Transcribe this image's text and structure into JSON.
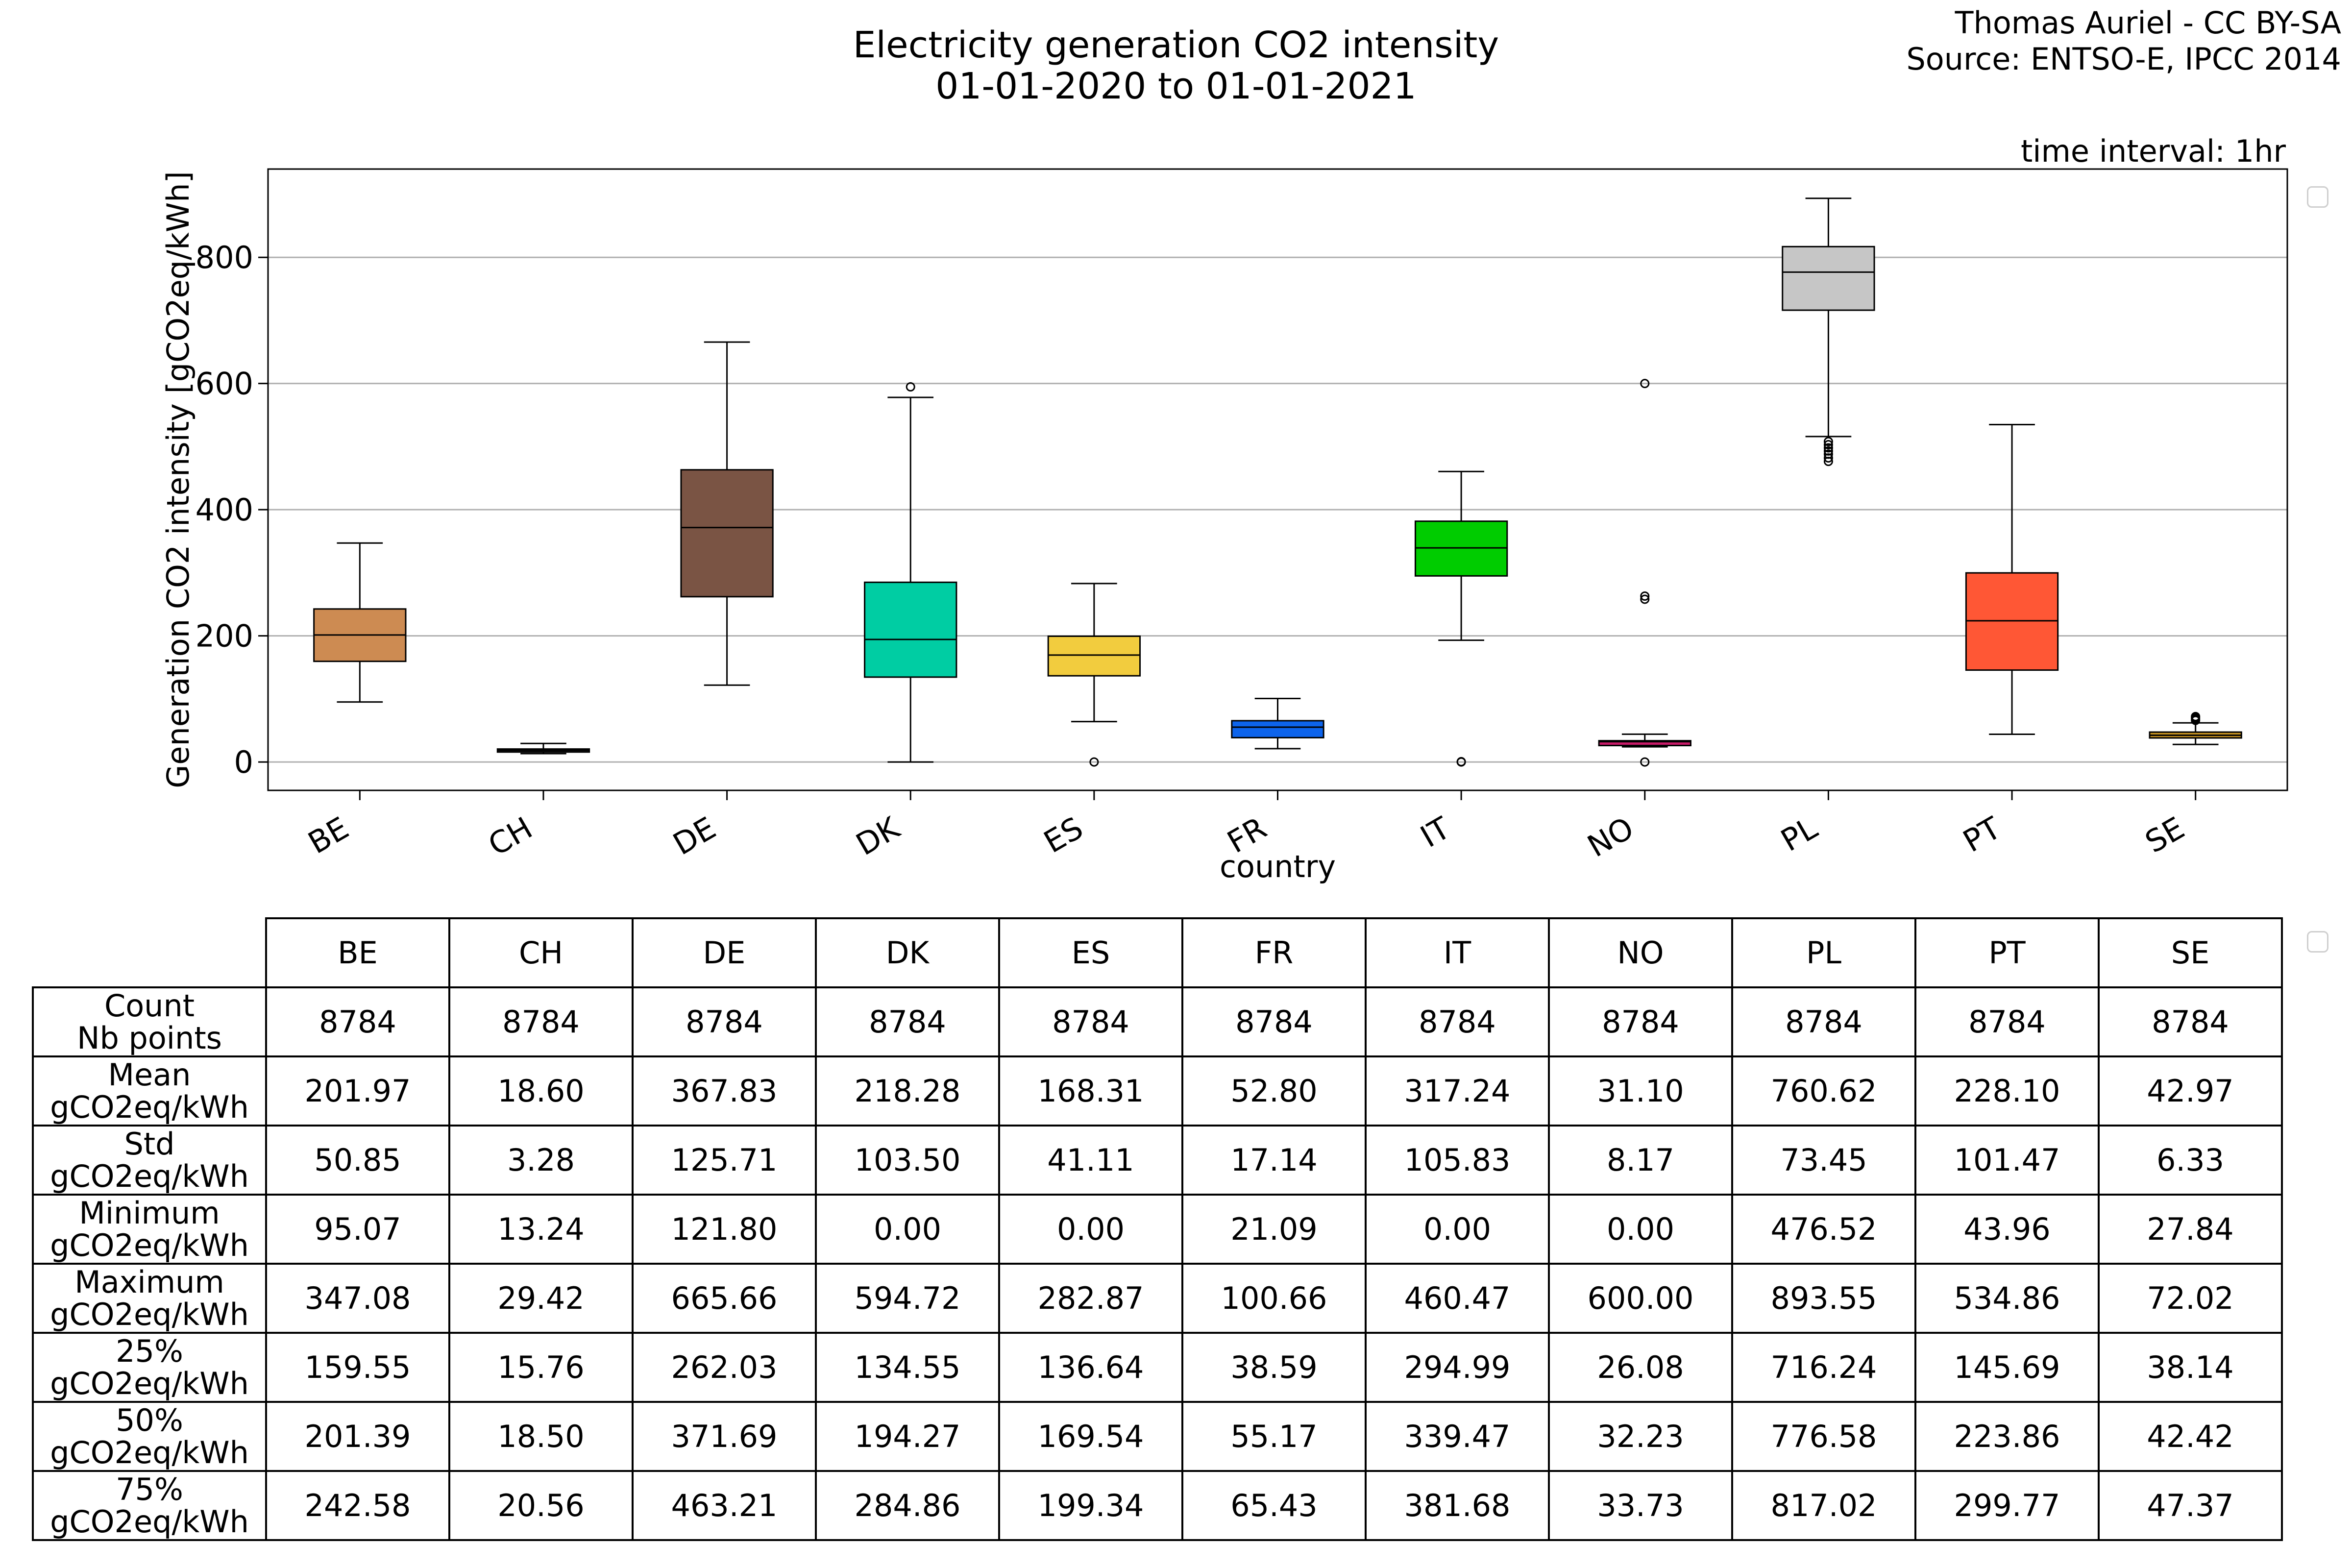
{
  "header": {
    "title_line1": "Electricity generation CO2 intensity",
    "title_line2": "01-01-2020 to 01-01-2021",
    "credit_line1": "Thomas Auriel - CC BY-SA",
    "credit_line2": "Source: ENTSO-E, IPCC 2014",
    "time_interval": "time interval: 1hr"
  },
  "chart_data": {
    "type": "box",
    "xlabel": "country",
    "ylabel": "Generation CO2 intensity [gCO2eq/kWh]",
    "ylim": [
      -45,
      940
    ],
    "yticks": [
      0,
      200,
      400,
      600,
      800
    ],
    "grid": "horizontal",
    "categories": [
      "BE",
      "CH",
      "DE",
      "DK",
      "ES",
      "FR",
      "IT",
      "NO",
      "PL",
      "PT",
      "SE"
    ],
    "boxes": [
      {
        "name": "BE",
        "color": "#cd8b52",
        "whislo": 95.07,
        "q1": 159.55,
        "med": 201.39,
        "q3": 242.58,
        "whishi": 347.08,
        "fliers": []
      },
      {
        "name": "CH",
        "color": "#2b2b2b",
        "whislo": 13.24,
        "q1": 15.76,
        "med": 18.5,
        "q3": 20.56,
        "whishi": 29.42,
        "fliers": []
      },
      {
        "name": "DE",
        "color": "#7a5444",
        "whislo": 121.8,
        "q1": 262.03,
        "med": 371.69,
        "q3": 463.21,
        "whishi": 665.66,
        "fliers": []
      },
      {
        "name": "DK",
        "color": "#00cda3",
        "whislo": 0.0,
        "q1": 134.55,
        "med": 194.27,
        "q3": 284.86,
        "whishi": 578,
        "fliers": [
          594.72
        ]
      },
      {
        "name": "ES",
        "color": "#f2cc3e",
        "whislo": 64,
        "q1": 136.64,
        "med": 169.54,
        "q3": 199.34,
        "whishi": 282.87,
        "fliers": [
          0.0
        ]
      },
      {
        "name": "FR",
        "color": "#0d64ec",
        "whislo": 21.09,
        "q1": 38.59,
        "med": 55.17,
        "q3": 65.43,
        "whishi": 100.66,
        "fliers": []
      },
      {
        "name": "IT",
        "color": "#00cc00",
        "whislo": 193,
        "q1": 294.99,
        "med": 339.47,
        "q3": 381.68,
        "whishi": 460.47,
        "fliers": [
          0.0,
          0.5
        ]
      },
      {
        "name": "NO",
        "color": "#c81b69",
        "whislo": 24,
        "q1": 26.08,
        "med": 32.23,
        "q3": 33.73,
        "whishi": 44,
        "fliers": [
          0.0,
          258,
          263,
          600.0
        ]
      },
      {
        "name": "PL",
        "color": "#c6c6c6",
        "whislo": 516,
        "q1": 716.24,
        "med": 776.58,
        "q3": 817.02,
        "whishi": 893.55,
        "fliers": [
          476.52,
          482,
          488,
          493,
          498,
          503,
          508
        ]
      },
      {
        "name": "PT",
        "color": "#ff5735",
        "whislo": 43.96,
        "q1": 145.69,
        "med": 223.86,
        "q3": 299.77,
        "whishi": 534.86,
        "fliers": []
      },
      {
        "name": "SE",
        "color": "#c89523",
        "whislo": 27.84,
        "q1": 38.14,
        "med": 42.42,
        "q3": 47.37,
        "whishi": 62,
        "fliers": [
          66,
          68,
          70,
          72.02
        ]
      }
    ]
  },
  "table": {
    "columns": [
      "BE",
      "CH",
      "DE",
      "DK",
      "ES",
      "FR",
      "IT",
      "NO",
      "PL",
      "PT",
      "SE"
    ],
    "rows": [
      {
        "label_1": "Count",
        "label_2": "Nb points",
        "values": [
          "8784",
          "8784",
          "8784",
          "8784",
          "8784",
          "8784",
          "8784",
          "8784",
          "8784",
          "8784",
          "8784"
        ]
      },
      {
        "label_1": "Mean",
        "label_2": "gCO2eq/kWh",
        "values": [
          "201.97",
          "18.60",
          "367.83",
          "218.28",
          "168.31",
          "52.80",
          "317.24",
          "31.10",
          "760.62",
          "228.10",
          "42.97"
        ]
      },
      {
        "label_1": "Std",
        "label_2": "gCO2eq/kWh",
        "values": [
          "50.85",
          "3.28",
          "125.71",
          "103.50",
          "41.11",
          "17.14",
          "105.83",
          "8.17",
          "73.45",
          "101.47",
          "6.33"
        ]
      },
      {
        "label_1": "Minimum",
        "label_2": "gCO2eq/kWh",
        "values": [
          "95.07",
          "13.24",
          "121.80",
          "0.00",
          "0.00",
          "21.09",
          "0.00",
          "0.00",
          "476.52",
          "43.96",
          "27.84"
        ]
      },
      {
        "label_1": "Maximum",
        "label_2": "gCO2eq/kWh",
        "values": [
          "347.08",
          "29.42",
          "665.66",
          "594.72",
          "282.87",
          "100.66",
          "460.47",
          "600.00",
          "893.55",
          "534.86",
          "72.02"
        ]
      },
      {
        "label_1": "25%",
        "label_2": "gCO2eq/kWh",
        "values": [
          "159.55",
          "15.76",
          "262.03",
          "134.55",
          "136.64",
          "38.59",
          "294.99",
          "26.08",
          "716.24",
          "145.69",
          "38.14"
        ]
      },
      {
        "label_1": "50%",
        "label_2": "gCO2eq/kWh",
        "values": [
          "201.39",
          "18.50",
          "371.69",
          "194.27",
          "169.54",
          "55.17",
          "339.47",
          "32.23",
          "776.58",
          "223.86",
          "42.42"
        ]
      },
      {
        "label_1": "75%",
        "label_2": "gCO2eq/kWh",
        "values": [
          "242.58",
          "20.56",
          "463.21",
          "284.86",
          "199.34",
          "65.43",
          "381.68",
          "33.73",
          "817.02",
          "299.77",
          "47.37"
        ]
      }
    ]
  }
}
